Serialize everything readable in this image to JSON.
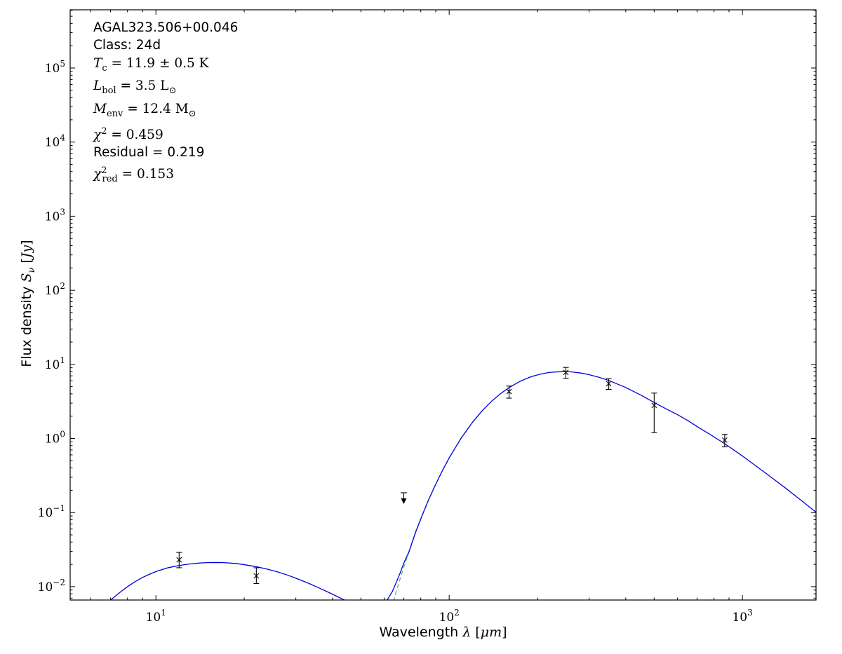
{
  "figure": {
    "background": "#ffffff",
    "axis_color": "#000000",
    "annotation": {
      "lines": [
        {
          "name": "source-name",
          "font": "sans",
          "parts": [
            {
              "t": "AGAL323.506+00.046",
              "s": "sf"
            }
          ]
        },
        {
          "name": "class-label",
          "font": "sans",
          "parts": [
            {
              "t": "Class: 24d",
              "s": "sf"
            }
          ]
        },
        {
          "name": "dust-temperature",
          "font": "math",
          "parts": [
            {
              "t": "T",
              "s": "it"
            },
            {
              "t": "c",
              "s": "sub"
            },
            {
              "t": " = 11.9 ± 0.5 K",
              "s": "rm"
            }
          ]
        },
        {
          "name": "bolometric-luminosity",
          "font": "math",
          "parts": [
            {
              "t": "L",
              "s": "it"
            },
            {
              "t": "bol",
              "s": "sub"
            },
            {
              "t": " = 3.5 L",
              "s": "rm"
            },
            {
              "t": "⊙",
              "s": "sub"
            }
          ]
        },
        {
          "name": "envelope-mass",
          "font": "math",
          "parts": [
            {
              "t": "M",
              "s": "it"
            },
            {
              "t": "env",
              "s": "sub"
            },
            {
              "t": " = 12.4 M",
              "s": "rm"
            },
            {
              "t": "⊙",
              "s": "sub"
            }
          ]
        },
        {
          "name": "chi-squared",
          "font": "math",
          "parts": [
            {
              "t": "χ",
              "s": "it"
            },
            {
              "t": "2",
              "s": "sup"
            },
            {
              "t": " = 0.459",
              "s": "rm"
            }
          ]
        },
        {
          "name": "residual",
          "font": "sans",
          "parts": [
            {
              "t": "Residual = 0.219",
              "s": "sf"
            }
          ]
        },
        {
          "name": "chi-squared-reduced",
          "font": "math",
          "parts": [
            {
              "t": "χ",
              "s": "it"
            },
            {
              "t": "2",
              "s": "sup"
            },
            {
              "t": "red",
              "s": "subtight"
            },
            {
              "t": " = 0.153",
              "s": "rm"
            }
          ]
        }
      ]
    },
    "x_axis": {
      "label_parts": [
        {
          "t": "Wavelength ",
          "s": "sf"
        },
        {
          "t": "λ",
          "s": "it"
        },
        {
          "t": " [",
          "s": "rm"
        },
        {
          "t": "μm",
          "s": "it"
        },
        {
          "t": "]",
          "s": "rm"
        }
      ]
    },
    "y_axis": {
      "label_parts": [
        {
          "t": "Flux density ",
          "s": "sf"
        },
        {
          "t": "S",
          "s": "it"
        },
        {
          "t": "ν",
          "s": "subit"
        },
        {
          "t": " [",
          "s": "rm"
        },
        {
          "t": "Jy",
          "s": "it"
        },
        {
          "t": "]",
          "s": "rm"
        }
      ]
    }
  },
  "chart_data": {
    "type": "line",
    "title": "",
    "xlabel": "Wavelength λ [μm]",
    "ylabel": "Flux density Sν [Jy]",
    "xscale": "log",
    "yscale": "log",
    "xlim": [
      5.1,
      1782
    ],
    "ylim": [
      0.0066,
      610000
    ],
    "x_major_tick_exponents": [
      1,
      2,
      3
    ],
    "y_major_tick_exponents": [
      -2,
      -1,
      0,
      1,
      2,
      3,
      4,
      5
    ],
    "grid": false,
    "legend": "none",
    "series": [
      {
        "name": "cold-greybody-component",
        "color": "#55bb66",
        "style": "dashed",
        "points": [
          [
            60,
            0.0022
          ],
          [
            62,
            0.0036
          ],
          [
            64,
            0.0056
          ],
          [
            66,
            0.0086
          ],
          [
            68,
            0.0127
          ],
          [
            70,
            0.0184
          ],
          [
            73,
            0.0295
          ],
          [
            77,
            0.0546
          ],
          [
            81,
            0.0918
          ],
          [
            85,
            0.147
          ],
          [
            90,
            0.242
          ],
          [
            95,
            0.374
          ],
          [
            100,
            0.547
          ],
          [
            110,
            1.02
          ],
          [
            120,
            1.645
          ],
          [
            130,
            2.4
          ]
        ]
      },
      {
        "name": "total-model-fit",
        "color": "#0000e0",
        "style": "solid",
        "points": [
          [
            6.8,
            0.006
          ],
          [
            7.2,
            0.0072
          ],
          [
            7.6,
            0.0086
          ],
          [
            8,
            0.01
          ],
          [
            8.5,
            0.0117
          ],
          [
            9,
            0.0133
          ],
          [
            9.5,
            0.0147
          ],
          [
            10,
            0.016
          ],
          [
            11,
            0.018
          ],
          [
            12,
            0.0193
          ],
          [
            13,
            0.0202
          ],
          [
            14,
            0.0208
          ],
          [
            15,
            0.0211
          ],
          [
            16,
            0.0212
          ],
          [
            17,
            0.0211
          ],
          [
            18,
            0.0208
          ],
          [
            19,
            0.0204
          ],
          [
            20,
            0.0198
          ],
          [
            22,
            0.0186
          ],
          [
            24,
            0.0172
          ],
          [
            26,
            0.0158
          ],
          [
            28,
            0.0144
          ],
          [
            30,
            0.013
          ],
          [
            33,
            0.0112
          ],
          [
            36,
            0.0096
          ],
          [
            39,
            0.0083
          ],
          [
            42,
            0.0072
          ],
          [
            45,
            0.0063
          ],
          [
            48,
            0.0056
          ],
          [
            51,
            0.005
          ],
          [
            54,
            0.0047
          ],
          [
            57,
            0.0047
          ],
          [
            59,
            0.0052
          ],
          [
            61,
            0.0063
          ],
          [
            62,
            0.007
          ],
          [
            64,
            0.0086
          ],
          [
            66,
            0.0114
          ],
          [
            68,
            0.0152
          ],
          [
            70,
            0.0207
          ],
          [
            73,
            0.03
          ],
          [
            77,
            0.056
          ],
          [
            81,
            0.093
          ],
          [
            85,
            0.148
          ],
          [
            90,
            0.242
          ],
          [
            95,
            0.374
          ],
          [
            100,
            0.547
          ],
          [
            110,
            1.02
          ],
          [
            120,
            1.65
          ],
          [
            130,
            2.4
          ],
          [
            140,
            3.22
          ],
          [
            150,
            4.05
          ],
          [
            160,
            4.86
          ],
          [
            175,
            5.95
          ],
          [
            190,
            6.8
          ],
          [
            205,
            7.41
          ],
          [
            220,
            7.79
          ],
          [
            243,
            8.0
          ],
          [
            260,
            7.93
          ],
          [
            280,
            7.66
          ],
          [
            300,
            7.26
          ],
          [
            325,
            6.67
          ],
          [
            350,
            6.06
          ],
          [
            400,
            4.87
          ],
          [
            450,
            3.86
          ],
          [
            500,
            3.06
          ],
          [
            550,
            2.5
          ],
          [
            600,
            2.1
          ],
          [
            650,
            1.75
          ],
          [
            700,
            1.45
          ],
          [
            800,
            1.05
          ],
          [
            870,
            0.85
          ],
          [
            1000,
            0.58
          ],
          [
            1200,
            0.34
          ],
          [
            1400,
            0.215
          ],
          [
            1600,
            0.142
          ],
          [
            1800,
            0.098
          ]
        ]
      }
    ],
    "data_points": [
      {
        "x": 12,
        "y": 0.023,
        "yerr_hi": 0.006,
        "yerr_lo": 0.005,
        "marker": "x"
      },
      {
        "x": 22,
        "y": 0.014,
        "yerr_hi": 0.004,
        "yerr_lo": 0.003,
        "marker": "x"
      },
      {
        "x": 70,
        "y": 0.185,
        "marker": "upper-limit"
      },
      {
        "x": 160,
        "y": 4.3,
        "yerr_hi": 0.8,
        "yerr_lo": 0.8,
        "marker": "x"
      },
      {
        "x": 250,
        "y": 7.8,
        "yerr_hi": 1.3,
        "yerr_lo": 1.3,
        "marker": "x"
      },
      {
        "x": 350,
        "y": 5.5,
        "yerr_hi": 0.9,
        "yerr_lo": 0.9,
        "marker": "x"
      },
      {
        "x": 500,
        "y": 2.8,
        "yerr_hi": 1.3,
        "yerr_lo": 1.6,
        "marker": "x"
      },
      {
        "x": 870,
        "y": 0.95,
        "yerr_hi": 0.18,
        "yerr_lo": 0.18,
        "marker": "x"
      }
    ],
    "marker_color": "#000000"
  }
}
